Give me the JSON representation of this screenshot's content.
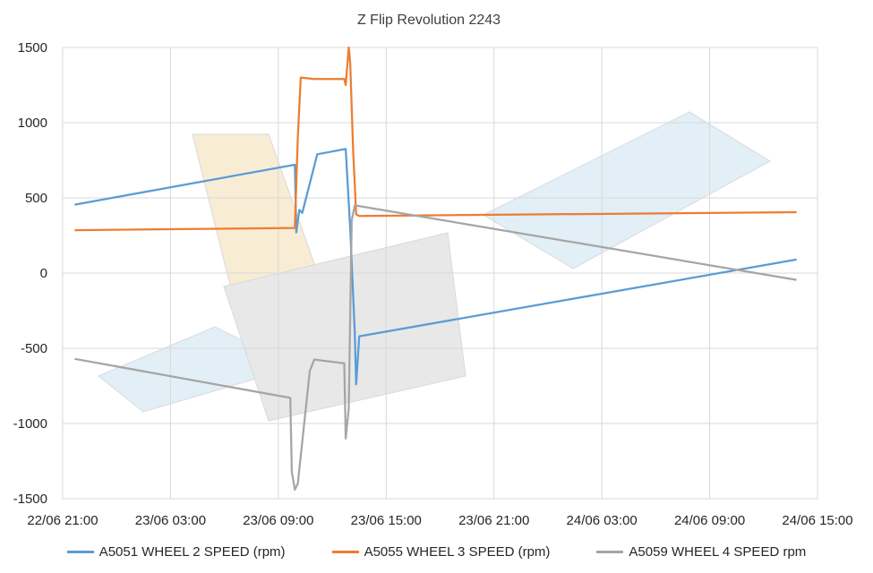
{
  "chart_data": {
    "type": "line",
    "title": "Z Flip Revolution 2243",
    "xlabel": "",
    "ylabel": "",
    "x_ticks": [
      "22/06 21:00",
      "23/06 03:00",
      "23/06 09:00",
      "23/06 15:00",
      "23/06 21:00",
      "24/06 03:00",
      "24/06 09:00",
      "24/06 15:00"
    ],
    "xlim": [
      "2023-06-22T21:00",
      "2023-06-24T15:00"
    ],
    "y_ticks": [
      1500,
      1000,
      500,
      0,
      -500,
      -1000,
      -1500
    ],
    "ylim": [
      -1500,
      1500
    ],
    "grid": true,
    "legend_position": "bottom",
    "background_image": "integral-satellite-sketch",
    "series": [
      {
        "name": "A5051 WHEEL 2 SPEED (rpm)",
        "color": "#5B9BD5",
        "points": [
          [
            "2023-06-22T21:40",
            455
          ],
          [
            "2023-06-23T09:55",
            720
          ],
          [
            "2023-06-23T10:00",
            270
          ],
          [
            "2023-06-23T10:10",
            420
          ],
          [
            "2023-06-23T10:20",
            400
          ],
          [
            "2023-06-23T11:10",
            790
          ],
          [
            "2023-06-23T12:45",
            825
          ],
          [
            "2023-06-23T13:00",
            300
          ],
          [
            "2023-06-23T13:15",
            -390
          ],
          [
            "2023-06-23T13:20",
            -740
          ],
          [
            "2023-06-23T13:30",
            -420
          ],
          [
            "2023-06-24T13:50",
            90
          ]
        ]
      },
      {
        "name": "A5055 WHEEL 3 SPEED (rpm)",
        "color": "#ED7D31",
        "points": [
          [
            "2023-06-22T21:40",
            285
          ],
          [
            "2023-06-23T09:55",
            300
          ],
          [
            "2023-06-23T10:05",
            900
          ],
          [
            "2023-06-23T10:15",
            1300
          ],
          [
            "2023-06-23T11:00",
            1290
          ],
          [
            "2023-06-23T12:40",
            1290
          ],
          [
            "2023-06-23T12:45",
            1250
          ],
          [
            "2023-06-23T12:55",
            1500
          ],
          [
            "2023-06-23T13:00",
            1400
          ],
          [
            "2023-06-23T13:10",
            800
          ],
          [
            "2023-06-23T13:20",
            390
          ],
          [
            "2023-06-23T13:30",
            380
          ],
          [
            "2023-06-24T13:50",
            405
          ]
        ]
      },
      {
        "name": "A5059 WHEEL 4 SPEED rpm",
        "color": "#A5A5A5",
        "points": [
          [
            "2023-06-22T21:40",
            -570
          ],
          [
            "2023-06-23T09:40",
            -830
          ],
          [
            "2023-06-23T09:45",
            -1320
          ],
          [
            "2023-06-23T09:55",
            -1440
          ],
          [
            "2023-06-23T10:05",
            -1400
          ],
          [
            "2023-06-23T10:45",
            -650
          ],
          [
            "2023-06-23T11:00",
            -575
          ],
          [
            "2023-06-23T12:40",
            -600
          ],
          [
            "2023-06-23T12:45",
            -1100
          ],
          [
            "2023-06-23T12:55",
            -900
          ],
          [
            "2023-06-23T13:05",
            350
          ],
          [
            "2023-06-23T13:15",
            450
          ],
          [
            "2023-06-24T13:50",
            -45
          ]
        ]
      }
    ]
  }
}
